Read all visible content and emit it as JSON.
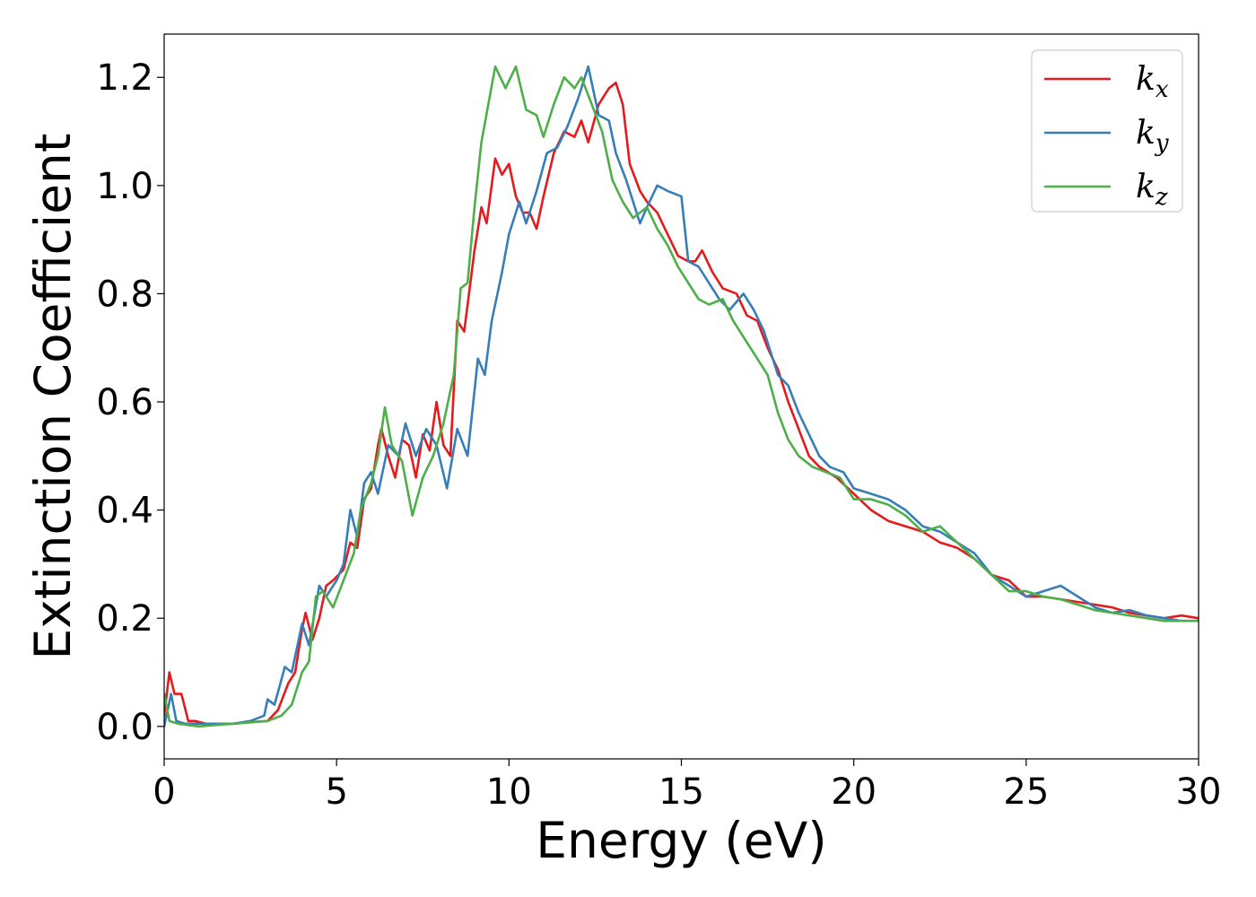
{
  "chart_data": {
    "type": "line",
    "title": "",
    "xlabel": "Energy (eV)",
    "ylabel": "Extinction Coefficient",
    "xlim": [
      0,
      30
    ],
    "ylim": [
      -0.06,
      1.28
    ],
    "xticks": [
      0,
      5,
      10,
      15,
      20,
      25,
      30
    ],
    "xtick_labels": [
      "0",
      "5",
      "10",
      "15",
      "20",
      "25",
      "30"
    ],
    "yticks": [
      0.0,
      0.2,
      0.4,
      0.6,
      0.8,
      1.0,
      1.2
    ],
    "ytick_labels": [
      "0.0",
      "0.2",
      "0.4",
      "0.6",
      "0.8",
      "1.0",
      "1.2"
    ],
    "grid": false,
    "legend_position": "top-right",
    "series": [
      {
        "name": "k",
        "subscript": "x",
        "color": "#e41a1c",
        "points": [
          [
            0,
            0.02
          ],
          [
            0.15,
            0.1
          ],
          [
            0.3,
            0.06
          ],
          [
            0.5,
            0.06
          ],
          [
            0.7,
            0.01
          ],
          [
            0.9,
            0.01
          ],
          [
            1.2,
            0.005
          ],
          [
            2,
            0.005
          ],
          [
            2.5,
            0.008
          ],
          [
            3,
            0.01
          ],
          [
            3.3,
            0.03
          ],
          [
            3.6,
            0.08
          ],
          [
            3.8,
            0.1
          ],
          [
            4,
            0.18
          ],
          [
            4.1,
            0.21
          ],
          [
            4.3,
            0.16
          ],
          [
            4.5,
            0.2
          ],
          [
            4.7,
            0.26
          ],
          [
            4.9,
            0.27
          ],
          [
            5.2,
            0.29
          ],
          [
            5.4,
            0.34
          ],
          [
            5.6,
            0.33
          ],
          [
            5.8,
            0.42
          ],
          [
            6.0,
            0.44
          ],
          [
            6.2,
            0.52
          ],
          [
            6.3,
            0.55
          ],
          [
            6.5,
            0.5
          ],
          [
            6.7,
            0.46
          ],
          [
            6.9,
            0.53
          ],
          [
            7.1,
            0.52
          ],
          [
            7.3,
            0.46
          ],
          [
            7.5,
            0.54
          ],
          [
            7.7,
            0.51
          ],
          [
            7.9,
            0.6
          ],
          [
            8.1,
            0.52
          ],
          [
            8.3,
            0.5
          ],
          [
            8.5,
            0.75
          ],
          [
            8.7,
            0.73
          ],
          [
            9.0,
            0.88
          ],
          [
            9.2,
            0.96
          ],
          [
            9.35,
            0.93
          ],
          [
            9.6,
            1.05
          ],
          [
            9.8,
            1.02
          ],
          [
            10.0,
            1.04
          ],
          [
            10.2,
            0.98
          ],
          [
            10.4,
            0.95
          ],
          [
            10.6,
            0.95
          ],
          [
            10.8,
            0.92
          ],
          [
            11.0,
            0.98
          ],
          [
            11.3,
            1.06
          ],
          [
            11.6,
            1.1
          ],
          [
            11.9,
            1.09
          ],
          [
            12.1,
            1.12
          ],
          [
            12.3,
            1.08
          ],
          [
            12.6,
            1.15
          ],
          [
            12.9,
            1.18
          ],
          [
            13.1,
            1.19
          ],
          [
            13.3,
            1.15
          ],
          [
            13.5,
            1.04
          ],
          [
            13.8,
            0.99
          ],
          [
            14.0,
            0.97
          ],
          [
            14.3,
            0.95
          ],
          [
            14.6,
            0.91
          ],
          [
            14.9,
            0.87
          ],
          [
            15.2,
            0.86
          ],
          [
            15.4,
            0.86
          ],
          [
            15.6,
            0.88
          ],
          [
            15.9,
            0.84
          ],
          [
            16.2,
            0.81
          ],
          [
            16.6,
            0.8
          ],
          [
            16.9,
            0.76
          ],
          [
            17.2,
            0.75
          ],
          [
            17.5,
            0.7
          ],
          [
            17.8,
            0.66
          ],
          [
            18.1,
            0.6
          ],
          [
            18.4,
            0.55
          ],
          [
            18.7,
            0.5
          ],
          [
            19.0,
            0.48
          ],
          [
            19.5,
            0.46
          ],
          [
            20.0,
            0.43
          ],
          [
            20.5,
            0.4
          ],
          [
            21.0,
            0.38
          ],
          [
            21.5,
            0.37
          ],
          [
            22.0,
            0.36
          ],
          [
            22.5,
            0.34
          ],
          [
            23.0,
            0.33
          ],
          [
            23.5,
            0.31
          ],
          [
            24.0,
            0.28
          ],
          [
            24.5,
            0.27
          ],
          [
            25.0,
            0.24
          ],
          [
            25.5,
            0.24
          ],
          [
            26.0,
            0.235
          ],
          [
            26.5,
            0.23
          ],
          [
            27.0,
            0.225
          ],
          [
            27.5,
            0.22
          ],
          [
            28.0,
            0.21
          ],
          [
            28.5,
            0.205
          ],
          [
            29.0,
            0.2
          ],
          [
            29.5,
            0.205
          ],
          [
            30.0,
            0.2
          ]
        ]
      },
      {
        "name": "k",
        "subscript": "y",
        "color": "#377eb8",
        "points": [
          [
            0,
            0.0
          ],
          [
            0.2,
            0.06
          ],
          [
            0.35,
            0.01
          ],
          [
            0.6,
            0.005
          ],
          [
            1.0,
            0.005
          ],
          [
            2.0,
            0.005
          ],
          [
            2.5,
            0.01
          ],
          [
            2.9,
            0.02
          ],
          [
            3.0,
            0.05
          ],
          [
            3.2,
            0.04
          ],
          [
            3.5,
            0.11
          ],
          [
            3.7,
            0.1
          ],
          [
            4.0,
            0.19
          ],
          [
            4.2,
            0.15
          ],
          [
            4.5,
            0.26
          ],
          [
            4.7,
            0.24
          ],
          [
            5.0,
            0.27
          ],
          [
            5.2,
            0.3
          ],
          [
            5.4,
            0.4
          ],
          [
            5.6,
            0.35
          ],
          [
            5.8,
            0.45
          ],
          [
            6.0,
            0.47
          ],
          [
            6.2,
            0.43
          ],
          [
            6.5,
            0.52
          ],
          [
            6.8,
            0.5
          ],
          [
            7.0,
            0.56
          ],
          [
            7.3,
            0.5
          ],
          [
            7.6,
            0.55
          ],
          [
            7.9,
            0.52
          ],
          [
            8.2,
            0.44
          ],
          [
            8.5,
            0.55
          ],
          [
            8.8,
            0.5
          ],
          [
            9.1,
            0.68
          ],
          [
            9.3,
            0.65
          ],
          [
            9.5,
            0.75
          ],
          [
            9.8,
            0.84
          ],
          [
            10.0,
            0.91
          ],
          [
            10.3,
            0.97
          ],
          [
            10.5,
            0.93
          ],
          [
            10.8,
            0.99
          ],
          [
            11.1,
            1.06
          ],
          [
            11.4,
            1.07
          ],
          [
            11.7,
            1.11
          ],
          [
            12.0,
            1.16
          ],
          [
            12.3,
            1.22
          ],
          [
            12.6,
            1.13
          ],
          [
            12.9,
            1.12
          ],
          [
            13.1,
            1.06
          ],
          [
            13.4,
            1.01
          ],
          [
            13.6,
            0.97
          ],
          [
            13.8,
            0.93
          ],
          [
            14.0,
            0.96
          ],
          [
            14.3,
            1.0
          ],
          [
            14.6,
            0.99
          ],
          [
            15.0,
            0.98
          ],
          [
            15.2,
            0.86
          ],
          [
            15.5,
            0.85
          ],
          [
            15.8,
            0.82
          ],
          [
            16.1,
            0.79
          ],
          [
            16.4,
            0.77
          ],
          [
            16.8,
            0.8
          ],
          [
            17.1,
            0.77
          ],
          [
            17.4,
            0.73
          ],
          [
            17.8,
            0.65
          ],
          [
            18.1,
            0.63
          ],
          [
            18.4,
            0.58
          ],
          [
            18.7,
            0.54
          ],
          [
            19.0,
            0.5
          ],
          [
            19.3,
            0.48
          ],
          [
            19.7,
            0.47
          ],
          [
            20.0,
            0.44
          ],
          [
            20.5,
            0.43
          ],
          [
            21.0,
            0.42
          ],
          [
            21.5,
            0.4
          ],
          [
            22.0,
            0.37
          ],
          [
            22.5,
            0.36
          ],
          [
            23.0,
            0.34
          ],
          [
            23.5,
            0.32
          ],
          [
            24.0,
            0.28
          ],
          [
            24.5,
            0.26
          ],
          [
            25.0,
            0.24
          ],
          [
            25.5,
            0.25
          ],
          [
            26.0,
            0.26
          ],
          [
            26.5,
            0.24
          ],
          [
            27.0,
            0.22
          ],
          [
            27.5,
            0.21
          ],
          [
            28.0,
            0.215
          ],
          [
            28.5,
            0.205
          ],
          [
            29.0,
            0.2
          ],
          [
            29.5,
            0.195
          ],
          [
            30.0,
            0.195
          ]
        ]
      },
      {
        "name": "k",
        "subscript": "z",
        "color": "#4daf4a",
        "points": [
          [
            0,
            0.06
          ],
          [
            0.15,
            0.01
          ],
          [
            0.4,
            0.005
          ],
          [
            1.0,
            0.0
          ],
          [
            2.0,
            0.005
          ],
          [
            3.0,
            0.01
          ],
          [
            3.4,
            0.02
          ],
          [
            3.7,
            0.04
          ],
          [
            4.0,
            0.1
          ],
          [
            4.2,
            0.12
          ],
          [
            4.4,
            0.24
          ],
          [
            4.6,
            0.25
          ],
          [
            4.9,
            0.22
          ],
          [
            5.2,
            0.27
          ],
          [
            5.5,
            0.32
          ],
          [
            5.7,
            0.4
          ],
          [
            6.0,
            0.45
          ],
          [
            6.2,
            0.5
          ],
          [
            6.4,
            0.59
          ],
          [
            6.6,
            0.52
          ],
          [
            6.9,
            0.49
          ],
          [
            7.2,
            0.39
          ],
          [
            7.5,
            0.46
          ],
          [
            7.8,
            0.5
          ],
          [
            8.1,
            0.56
          ],
          [
            8.4,
            0.65
          ],
          [
            8.6,
            0.81
          ],
          [
            8.8,
            0.82
          ],
          [
            9.0,
            0.96
          ],
          [
            9.2,
            1.08
          ],
          [
            9.4,
            1.15
          ],
          [
            9.6,
            1.22
          ],
          [
            9.9,
            1.18
          ],
          [
            10.2,
            1.22
          ],
          [
            10.5,
            1.14
          ],
          [
            10.8,
            1.13
          ],
          [
            11.0,
            1.09
          ],
          [
            11.3,
            1.15
          ],
          [
            11.6,
            1.2
          ],
          [
            11.9,
            1.18
          ],
          [
            12.1,
            1.2
          ],
          [
            12.4,
            1.15
          ],
          [
            12.7,
            1.1
          ],
          [
            13.0,
            1.01
          ],
          [
            13.3,
            0.97
          ],
          [
            13.6,
            0.94
          ],
          [
            14.0,
            0.96
          ],
          [
            14.3,
            0.92
          ],
          [
            14.6,
            0.89
          ],
          [
            14.9,
            0.85
          ],
          [
            15.2,
            0.82
          ],
          [
            15.5,
            0.79
          ],
          [
            15.8,
            0.78
          ],
          [
            16.2,
            0.79
          ],
          [
            16.5,
            0.75
          ],
          [
            16.9,
            0.71
          ],
          [
            17.2,
            0.68
          ],
          [
            17.5,
            0.65
          ],
          [
            17.8,
            0.58
          ],
          [
            18.1,
            0.53
          ],
          [
            18.4,
            0.5
          ],
          [
            18.8,
            0.48
          ],
          [
            19.2,
            0.47
          ],
          [
            19.6,
            0.46
          ],
          [
            20.0,
            0.42
          ],
          [
            20.5,
            0.42
          ],
          [
            21.0,
            0.41
          ],
          [
            21.5,
            0.39
          ],
          [
            22.0,
            0.36
          ],
          [
            22.5,
            0.37
          ],
          [
            23.0,
            0.34
          ],
          [
            23.5,
            0.31
          ],
          [
            24.0,
            0.28
          ],
          [
            24.5,
            0.25
          ],
          [
            25.0,
            0.25
          ],
          [
            25.5,
            0.24
          ],
          [
            26.0,
            0.235
          ],
          [
            26.5,
            0.225
          ],
          [
            27.0,
            0.215
          ],
          [
            27.5,
            0.21
          ],
          [
            28.0,
            0.205
          ],
          [
            28.5,
            0.2
          ],
          [
            29.0,
            0.195
          ],
          [
            29.5,
            0.195
          ],
          [
            30.0,
            0.195
          ]
        ]
      }
    ]
  }
}
